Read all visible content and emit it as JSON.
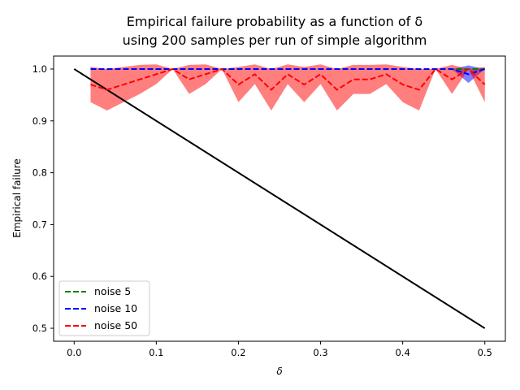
{
  "chart_data": {
    "type": "line",
    "title_line1": "Empirical failure probability as a function of δ",
    "title_line2": "using 200 samples per run of simple algorithm",
    "xlabel": "δ",
    "ylabel": "Empirical failure",
    "xlim": [
      -0.025,
      0.525
    ],
    "ylim": [
      0.475,
      1.025
    ],
    "xticks": [
      0.0,
      0.1,
      0.2,
      0.3,
      0.4,
      0.5
    ],
    "xtick_labels": [
      "0.0",
      "0.1",
      "0.2",
      "0.3",
      "0.4",
      "0.5"
    ],
    "yticks": [
      0.5,
      0.6,
      0.7,
      0.8,
      0.9,
      1.0
    ],
    "ytick_labels": [
      "0.5",
      "0.6",
      "0.7",
      "0.8",
      "0.9",
      "1.0"
    ],
    "grid": false,
    "legend_position": "lower-left",
    "x": [
      0.02,
      0.04,
      0.06,
      0.08,
      0.1,
      0.12,
      0.14,
      0.16,
      0.18,
      0.2,
      0.22,
      0.24,
      0.26,
      0.28,
      0.3,
      0.32,
      0.34,
      0.36,
      0.38,
      0.4,
      0.42,
      0.44,
      0.46,
      0.48,
      0.5
    ],
    "reference_line": {
      "x": [
        0.0,
        0.5
      ],
      "y": [
        1.0,
        0.5
      ],
      "color": "#000000"
    },
    "series": [
      {
        "name": "noise 5",
        "color": "#008000",
        "values": [
          1,
          1,
          1,
          1,
          1,
          1,
          1,
          1,
          1,
          1,
          1,
          1,
          1,
          1,
          1,
          1,
          1,
          1,
          1,
          1,
          1,
          1,
          1,
          1,
          1
        ],
        "band_lower": [
          1,
          1,
          1,
          1,
          1,
          1,
          1,
          1,
          1,
          1,
          1,
          1,
          1,
          1,
          1,
          1,
          1,
          1,
          1,
          1,
          1,
          1,
          1,
          1,
          1
        ],
        "band_upper": [
          1,
          1,
          1,
          1,
          1,
          1,
          1,
          1,
          1,
          1,
          1,
          1,
          1,
          1,
          1,
          1,
          1,
          1,
          1,
          1,
          1,
          1,
          1,
          1,
          1
        ]
      },
      {
        "name": "noise 10",
        "color": "#0000ff",
        "values": [
          1,
          1,
          1,
          1,
          1,
          1,
          1,
          1,
          1,
          1,
          1,
          1,
          1,
          1,
          1,
          1,
          1,
          1,
          1,
          1,
          1,
          1,
          1,
          0.99,
          1
        ],
        "band_lower": [
          1,
          1,
          1,
          1,
          1,
          1,
          1,
          1,
          1,
          1,
          1,
          1,
          1,
          1,
          1,
          1,
          1,
          1,
          1,
          1,
          1,
          1,
          1,
          0.973,
          1
        ],
        "band_upper": [
          1,
          1,
          1,
          1,
          1,
          1,
          1,
          1,
          1,
          1,
          1,
          1,
          1,
          1,
          1,
          1,
          1,
          1,
          1,
          1,
          1,
          1,
          1,
          1.007,
          1
        ]
      },
      {
        "name": "noise 50",
        "color": "#ff0000",
        "values": [
          0.97,
          0.96,
          0.97,
          0.98,
          0.99,
          1.0,
          0.98,
          0.99,
          1.0,
          0.97,
          0.99,
          0.96,
          0.99,
          0.97,
          0.99,
          0.96,
          0.98,
          0.98,
          0.99,
          0.97,
          0.96,
          1.0,
          0.98,
          1.0,
          0.97
        ],
        "band_lower": [
          0.936,
          0.92,
          0.936,
          0.952,
          0.971,
          1.0,
          0.952,
          0.971,
          1.0,
          0.936,
          0.971,
          0.92,
          0.971,
          0.936,
          0.971,
          0.92,
          0.952,
          0.952,
          0.971,
          0.936,
          0.92,
          1.0,
          0.952,
          1.0,
          0.936
        ],
        "band_upper": [
          1.004,
          1.0,
          1.004,
          1.008,
          1.009,
          1.0,
          1.008,
          1.009,
          1.0,
          1.004,
          1.009,
          1.0,
          1.009,
          1.004,
          1.009,
          1.0,
          1.008,
          1.008,
          1.009,
          1.004,
          1.0,
          1.0,
          1.008,
          1.0,
          1.004
        ]
      }
    ]
  }
}
